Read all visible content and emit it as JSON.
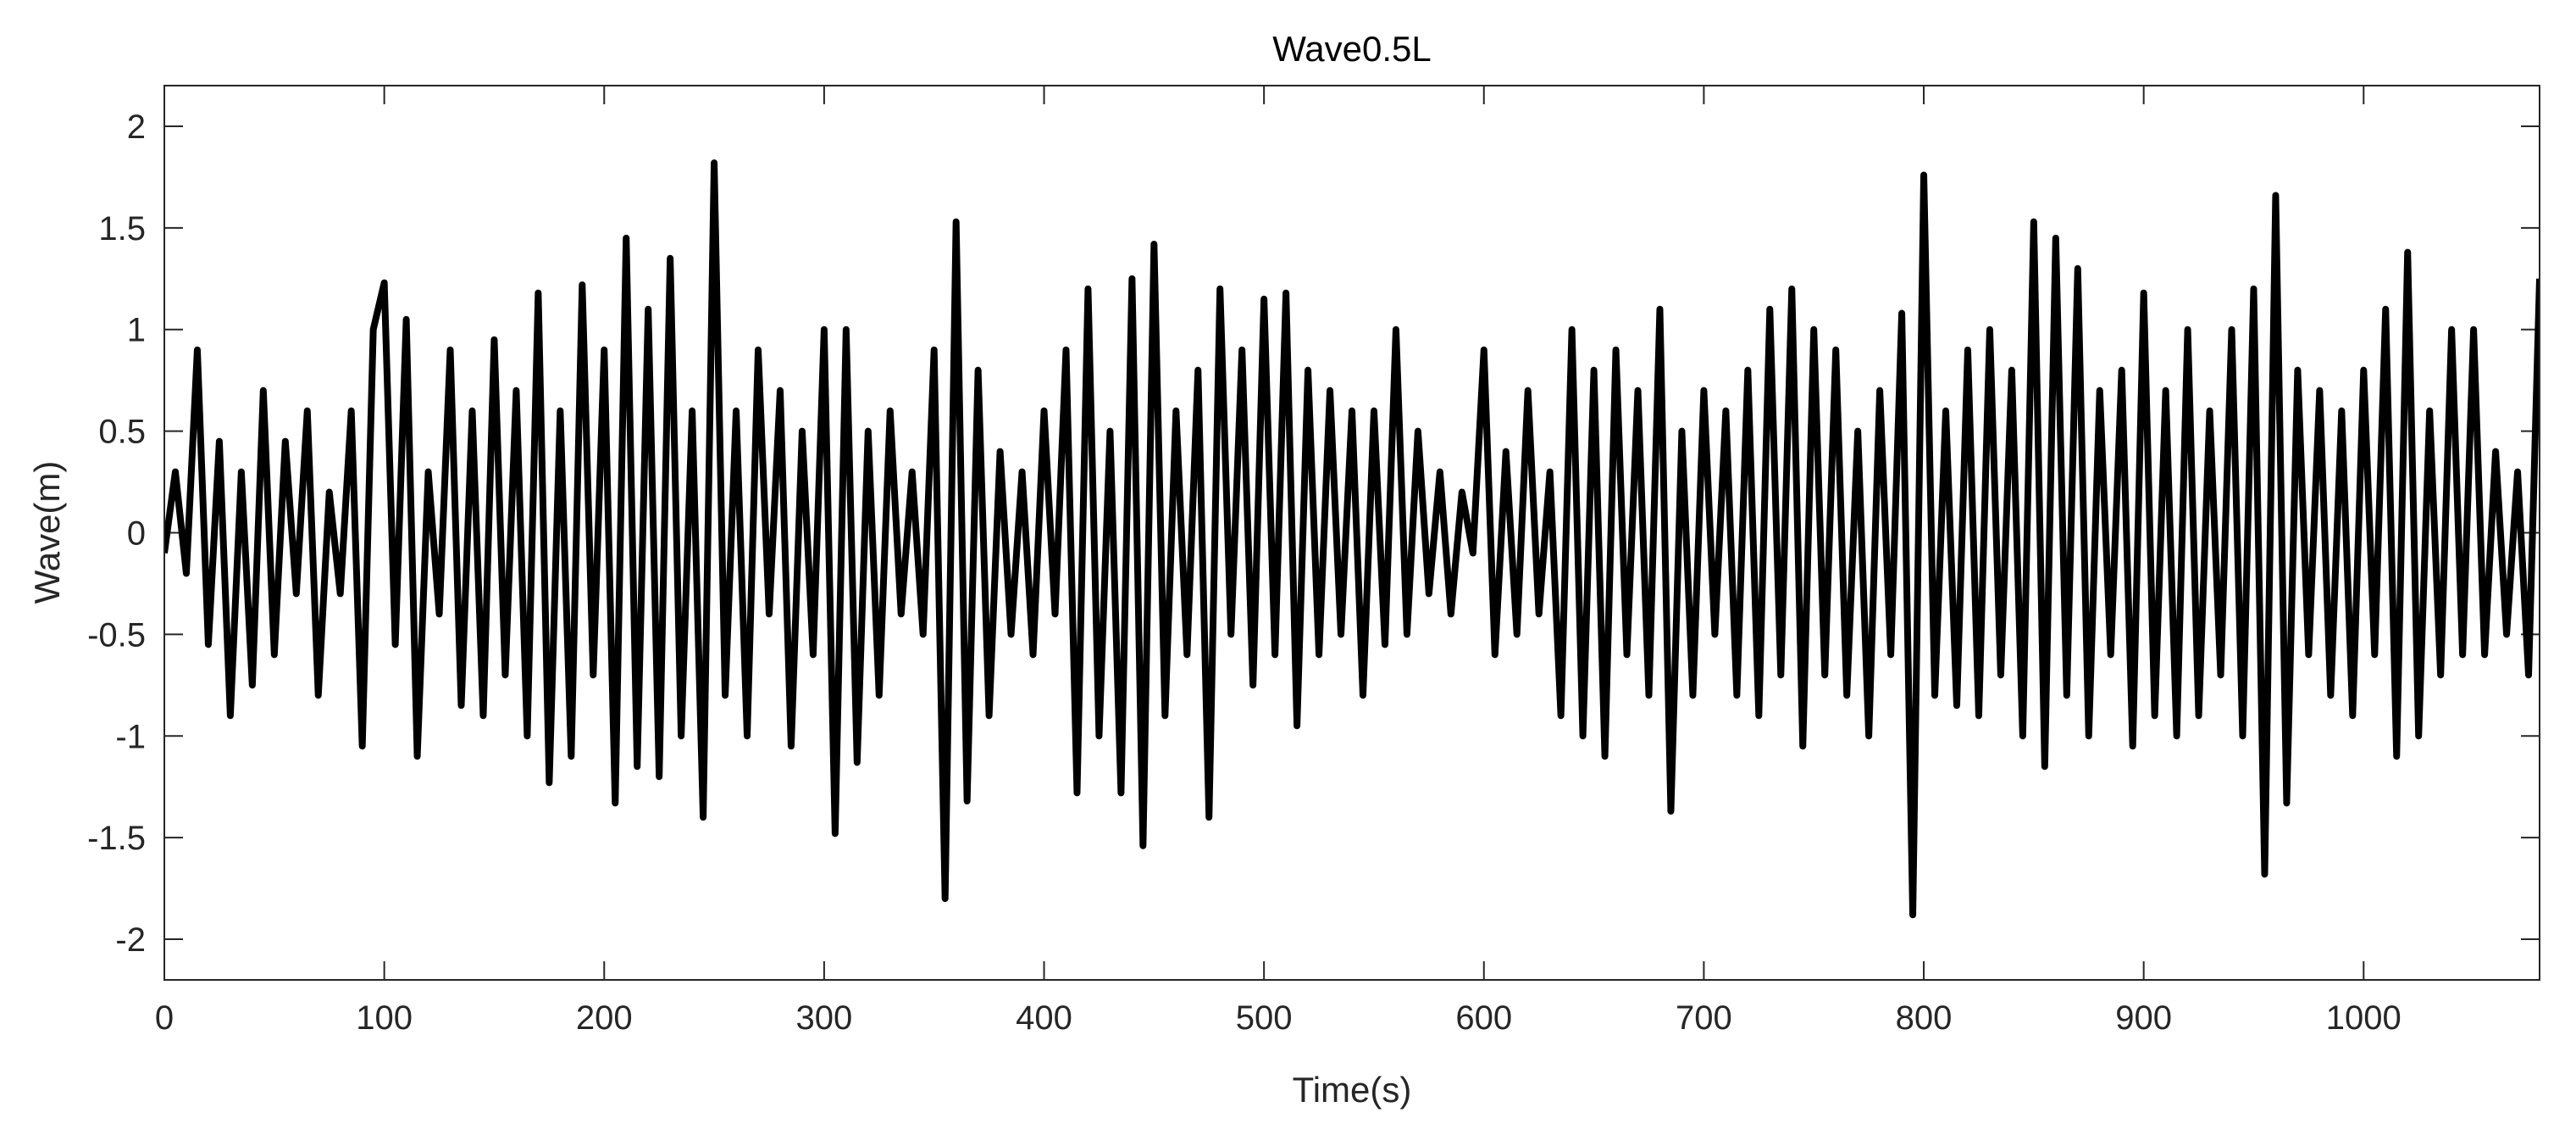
{
  "chart_data": {
    "type": "line",
    "title": "Wave0.5L",
    "xlabel": "Time(s)",
    "ylabel": "Wave(m)",
    "x": [
      0,
      5,
      10,
      15,
      20,
      25,
      30,
      35,
      40,
      45,
      50,
      55,
      60,
      65,
      70,
      75,
      80,
      85,
      90,
      95,
      100,
      105,
      110,
      115,
      120,
      125,
      130,
      135,
      140,
      145,
      150,
      155,
      160,
      165,
      170,
      175,
      180,
      185,
      190,
      195,
      200,
      205,
      210,
      215,
      220,
      225,
      230,
      235,
      240,
      245,
      250,
      255,
      260,
      265,
      270,
      275,
      280,
      285,
      290,
      295,
      300,
      305,
      310,
      315,
      320,
      325,
      330,
      335,
      340,
      345,
      350,
      355,
      360,
      365,
      370,
      375,
      380,
      385,
      390,
      395,
      400,
      405,
      410,
      415,
      420,
      425,
      430,
      435,
      440,
      445,
      450,
      455,
      460,
      465,
      470,
      475,
      480,
      485,
      490,
      495,
      500,
      505,
      510,
      515,
      520,
      525,
      530,
      535,
      540,
      545,
      550,
      555,
      560,
      565,
      570,
      575,
      580,
      585,
      590,
      595,
      600,
      605,
      610,
      615,
      620,
      625,
      630,
      635,
      640,
      645,
      650,
      655,
      660,
      665,
      670,
      675,
      680,
      685,
      690,
      695,
      700,
      705,
      710,
      715,
      720,
      725,
      730,
      735,
      740,
      745,
      750,
      755,
      760,
      765,
      770,
      775,
      780,
      785,
      790,
      795,
      800,
      805,
      810,
      815,
      820,
      825,
      830,
      835,
      840,
      845,
      850,
      855,
      860,
      865,
      870,
      875,
      880,
      885,
      890,
      895,
      900,
      905,
      910,
      915,
      920,
      925,
      930,
      935,
      940,
      945,
      950,
      955,
      960,
      965,
      970,
      975,
      980,
      985,
      990,
      995,
      1000,
      1005,
      1010,
      1015,
      1020,
      1025,
      1030,
      1035,
      1040,
      1045,
      1050,
      1055,
      1060,
      1065,
      1070,
      1075,
      1080
    ],
    "series": [
      {
        "name": "Wave",
        "color": "#000000",
        "values": [
          -0.1,
          0.3,
          -0.2,
          0.9,
          -0.55,
          0.45,
          -0.9,
          0.3,
          -0.75,
          0.7,
          -0.6,
          0.45,
          -0.3,
          0.6,
          -0.8,
          0.2,
          -0.3,
          0.6,
          -1.05,
          1.0,
          1.23,
          -0.55,
          1.05,
          -1.1,
          0.3,
          -0.4,
          0.9,
          -0.85,
          0.6,
          -0.9,
          0.95,
          -0.7,
          0.7,
          -1.0,
          1.18,
          -1.23,
          0.6,
          -1.1,
          1.22,
          -0.7,
          0.9,
          -1.33,
          1.45,
          -1.15,
          1.1,
          -1.2,
          1.35,
          -1.0,
          0.6,
          -1.4,
          1.82,
          -0.8,
          0.6,
          -1.0,
          0.9,
          -0.4,
          0.7,
          -1.05,
          0.5,
          -0.6,
          1.0,
          -1.48,
          1.0,
          -1.13,
          0.5,
          -0.8,
          0.6,
          -0.4,
          0.3,
          -0.5,
          0.9,
          -1.8,
          1.53,
          -1.32,
          0.8,
          -0.9,
          0.4,
          -0.5,
          0.3,
          -0.6,
          0.6,
          -0.4,
          0.9,
          -1.28,
          1.2,
          -1.0,
          0.5,
          -1.28,
          1.25,
          -1.54,
          1.42,
          -0.9,
          0.6,
          -0.6,
          0.8,
          -1.4,
          1.2,
          -0.5,
          0.9,
          -0.75,
          1.15,
          -0.6,
          1.18,
          -0.95,
          0.8,
          -0.6,
          0.7,
          -0.5,
          0.6,
          -0.8,
          0.6,
          -0.55,
          1.0,
          -0.5,
          0.5,
          -0.3,
          0.3,
          -0.4,
          0.2,
          -0.1,
          0.9,
          -0.6,
          0.4,
          -0.5,
          0.7,
          -0.4,
          0.3,
          -0.9,
          1.0,
          -1.0,
          0.8,
          -1.1,
          0.9,
          -0.6,
          0.7,
          -0.8,
          1.1,
          -1.37,
          0.5,
          -0.8,
          0.7,
          -0.5,
          0.6,
          -0.8,
          0.8,
          -0.9,
          1.1,
          -0.7,
          1.2,
          -1.05,
          1.0,
          -0.7,
          0.9,
          -0.8,
          0.5,
          -1.0,
          0.7,
          -0.6,
          1.08,
          -1.88,
          1.76,
          -0.8,
          0.6,
          -0.85,
          0.9,
          -0.9,
          1.0,
          -0.7,
          0.8,
          -1.0,
          1.53,
          -1.15,
          1.45,
          -0.8,
          1.3,
          -1.0,
          0.7,
          -0.6,
          0.8,
          -1.05,
          1.18,
          -0.9,
          0.7,
          -1.0,
          1.0,
          -0.9,
          0.6,
          -0.7,
          1.0,
          -1.0,
          1.2,
          -1.68,
          1.66,
          -1.33,
          0.8,
          -0.6,
          0.7,
          -0.8,
          0.6,
          -0.9,
          0.8,
          -0.6,
          1.1,
          -1.1,
          1.38,
          -1.0,
          0.6,
          -0.7,
          1.0,
          -0.6,
          1.0,
          -0.6,
          0.4,
          -0.5,
          0.3,
          -0.7,
          1.25
        ]
      }
    ],
    "xlim": [
      0,
      1080
    ],
    "xticks": [
      0,
      100,
      200,
      300,
      400,
      500,
      600,
      700,
      800,
      900,
      1000
    ],
    "ylim": [
      -2.2,
      2.2
    ],
    "yticks": [
      -2,
      -1.5,
      -1,
      -0.5,
      0,
      0.5,
      1,
      1.5,
      2
    ],
    "grid": false
  }
}
